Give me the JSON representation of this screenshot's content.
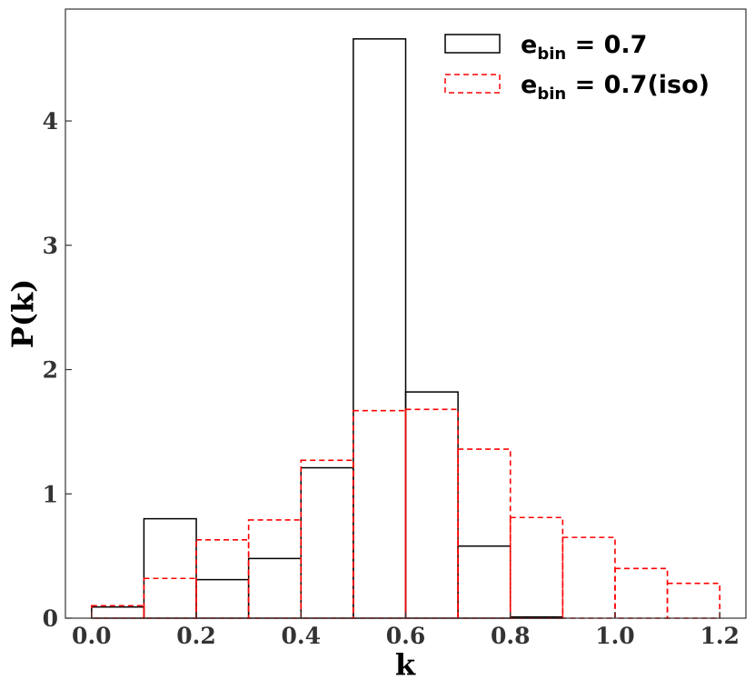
{
  "chart_data": {
    "type": "histogram",
    "xlabel": "k",
    "ylabel": "P(k)",
    "xlim": [
      -0.05,
      1.25
    ],
    "ylim": [
      0,
      4.9
    ],
    "x_ticks": [
      0.0,
      0.2,
      0.4,
      0.6,
      0.8,
      1.0,
      1.2
    ],
    "x_tick_labels": [
      "0.0",
      "0.2",
      "0.4",
      "0.6",
      "0.8",
      "1.0",
      "1.2"
    ],
    "y_ticks": [
      0,
      1,
      2,
      3,
      4
    ],
    "y_tick_labels": [
      "0",
      "1",
      "2",
      "3",
      "4"
    ],
    "bin_edges": [
      0.0,
      0.1,
      0.2,
      0.3,
      0.4,
      0.5,
      0.6,
      0.7,
      0.8,
      0.9,
      1.0,
      1.1,
      1.2
    ],
    "legend_position": "top-right",
    "series": [
      {
        "legend_main": "e",
        "legend_sub": "bin",
        "legend_rest": " = 0.7",
        "color": "#000000",
        "style": "solid",
        "values": [
          0.09,
          0.8,
          0.31,
          0.48,
          1.21,
          4.66,
          1.82,
          0.58,
          0.01,
          0.0,
          0.0,
          0.0
        ]
      },
      {
        "legend_main": "e",
        "legend_sub": "bin",
        "legend_rest": " = 0.7(iso)",
        "color": "#ff0000",
        "style": "dashed",
        "values": [
          0.1,
          0.32,
          0.63,
          0.79,
          1.27,
          1.67,
          1.68,
          1.36,
          0.81,
          0.65,
          0.4,
          0.28
        ]
      }
    ]
  }
}
